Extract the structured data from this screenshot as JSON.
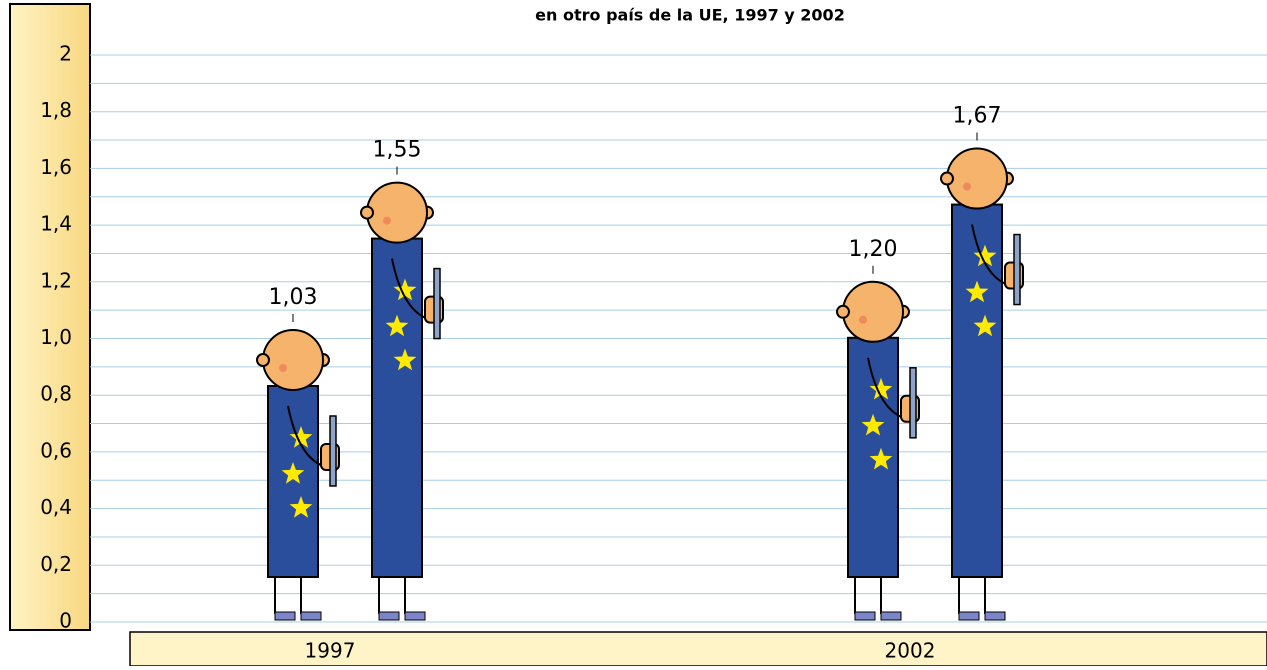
{
  "chart_data": {
    "type": "pictogram",
    "title": "en otro país de la UE, 1997 y 2002",
    "categories": [
      "1997",
      "2002"
    ],
    "series": [
      {
        "color": "#2a4d9c",
        "values": [
          1.03,
          1.2
        ],
        "value_labels": [
          "1,03",
          "1,20"
        ]
      },
      {
        "color": "#2a4d9c",
        "values": [
          1.55,
          1.67
        ],
        "value_labels": [
          "1,55",
          "1,67"
        ]
      }
    ],
    "ylim": [
      0,
      2.04
    ],
    "yticks": [
      {
        "value": 0,
        "label": "0"
      },
      {
        "value": 0.2,
        "label": "0,2"
      },
      {
        "value": 0.4,
        "label": "0,4"
      },
      {
        "value": 0.6,
        "label": "0,6"
      },
      {
        "value": 0.8,
        "label": "0,8"
      },
      {
        "value": 1.0,
        "label": "1,0"
      },
      {
        "value": 1.2,
        "label": "1,2"
      },
      {
        "value": 1.4,
        "label": "1,4"
      },
      {
        "value": 1.6,
        "label": "1,6"
      },
      {
        "value": 1.8,
        "label": "1,8"
      },
      {
        "value": 2,
        "label": "2"
      }
    ],
    "minor_yticks": [
      0.1,
      0.3,
      0.5,
      0.7,
      0.9,
      1.1,
      1.3,
      1.5,
      1.7,
      1.9
    ],
    "grid": true
  }
}
